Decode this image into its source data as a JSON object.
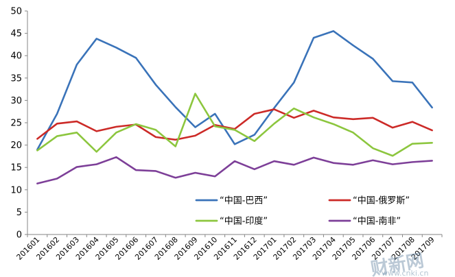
{
  "chart_data": {
    "type": "line",
    "categories": [
      "201601",
      "201602",
      "201603",
      "201604",
      "201605",
      "201606",
      "201607",
      "201608",
      "201609",
      "201610",
      "201611",
      "201612",
      "201701",
      "201702",
      "201703",
      "201704",
      "201705",
      "201706",
      "201707",
      "201708",
      "201709"
    ],
    "ylim": [
      0,
      50
    ],
    "yticks": [
      0,
      5,
      10,
      15,
      20,
      25,
      30,
      35,
      40,
      45,
      50
    ],
    "grid": false,
    "legend_placement": "bottom-right, inside plot",
    "series": [
      {
        "name": "“中国-巴西”",
        "color": "#3a73b9",
        "values": [
          19.0,
          27.0,
          38.0,
          43.8,
          41.8,
          39.5,
          33.5,
          28.5,
          24.0,
          27.0,
          20.2,
          22.3,
          28.3,
          34.0,
          44.0,
          45.5,
          42.3,
          39.3,
          34.3,
          34.0,
          28.4
        ]
      },
      {
        "name": "“中国-俄罗斯”",
        "color": "#cc2a27",
        "values": [
          21.4,
          24.8,
          25.3,
          23.1,
          24.1,
          24.6,
          21.8,
          21.2,
          22.1,
          24.5,
          23.6,
          27.0,
          28.0,
          26.1,
          27.7,
          26.2,
          25.8,
          26.1,
          23.9,
          25.2,
          23.3
        ]
      },
      {
        "name": "“中国-印度”",
        "color": "#8cc63e",
        "values": [
          18.8,
          22.0,
          22.8,
          18.5,
          22.8,
          24.7,
          23.4,
          19.7,
          31.5,
          24.2,
          23.4,
          20.9,
          24.8,
          28.2,
          26.2,
          24.7,
          22.8,
          19.3,
          17.6,
          20.3,
          20.5
        ]
      },
      {
        "name": "“中国-南非”",
        "color": "#7d3f98",
        "values": [
          11.4,
          12.5,
          15.1,
          15.7,
          17.3,
          14.4,
          14.2,
          12.7,
          13.8,
          13.0,
          16.4,
          14.6,
          16.4,
          15.6,
          17.2,
          16.0,
          15.6,
          16.6,
          15.7,
          16.2,
          16.5
        ]
      }
    ]
  },
  "watermark": {
    "logo": "财新网",
    "url": "www.cnki.cn"
  }
}
